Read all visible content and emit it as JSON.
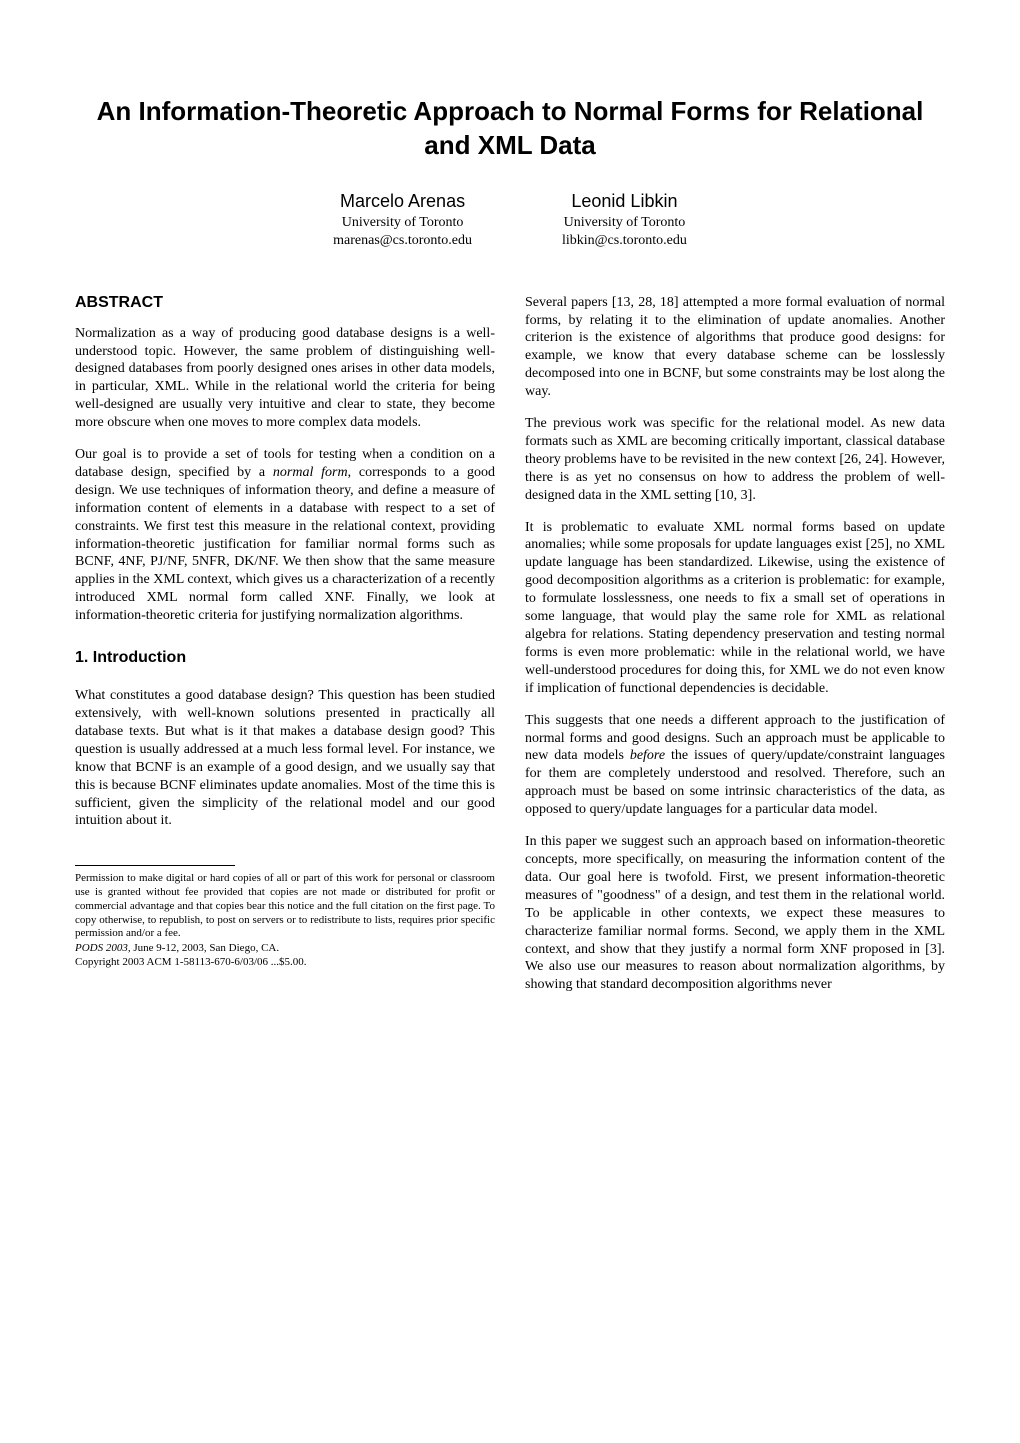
{
  "title": "An Information-Theoretic Approach to Normal Forms for Relational and XML Data",
  "authors": [
    {
      "name": "Marcelo Arenas",
      "affiliation": "University of Toronto",
      "email": "marenas@cs.toronto.edu"
    },
    {
      "name": "Leonid Libkin",
      "affiliation": "University of Toronto",
      "email": "libkin@cs.toronto.edu"
    }
  ],
  "sections": {
    "abstract_header": "ABSTRACT",
    "abstract_p1": "Normalization as a way of producing good database designs is a well-understood topic. However, the same problem of distinguishing well-designed databases from poorly designed ones arises in other data models, in particular, XML. While in the relational world the criteria for being well-designed are usually very intuitive and clear to state, they become more obscure when one moves to more complex data models.",
    "abstract_p2_part1": "Our goal is to provide a set of tools for testing when a condition on a database design, specified by a ",
    "abstract_p2_italic": "normal form",
    "abstract_p2_part2": ", corresponds to a good design. We use techniques of information theory, and define a measure of information content of elements in a database with respect to a set of constraints. We first test this measure in the relational context, providing information-theoretic justification for familiar normal forms such as BCNF, 4NF, PJ/NF, 5NFR, DK/NF. We then show that the same measure applies in the XML context, which gives us a characterization of a recently introduced XML normal form called XNF. Finally, we look at information-theoretic criteria for justifying normalization algorithms.",
    "intro_header": "1.   Introduction",
    "intro_p1": "What constitutes a good database design? This question has been studied extensively, with well-known solutions presented in practically all database texts. But what is it that makes a database design good? This question is usually addressed at a much less formal level. For instance, we know that BCNF is an example of a good design, and we usually say that this is because BCNF eliminates update anomalies. Most of the time this is sufficient, given the simplicity of the relational model and our good intuition about it.",
    "right_p1": "Several papers [13, 28, 18] attempted a more formal evaluation of normal forms, by relating it to the elimination of update anomalies. Another criterion is the existence of algorithms that produce good designs: for example, we know that every database scheme can be losslessly decomposed into one in BCNF, but some constraints may be lost along the way.",
    "right_p2": "The previous work was specific for the relational model. As new data formats such as XML are becoming critically important, classical database theory problems have to be revisited in the new context [26, 24]. However, there is as yet no consensus on how to address the problem of well-designed data in the XML setting [10, 3].",
    "right_p3": "It is problematic to evaluate XML normal forms based on update anomalies; while some proposals for update languages exist [25], no XML update language has been standardized. Likewise, using the existence of good decomposition algorithms as a criterion is problematic: for example, to formulate losslessness, one needs to fix a small set of operations in some language, that would play the same role for XML as relational algebra for relations. Stating dependency preservation and testing normal forms is even more problematic: while in the relational world, we have well-understood procedures for doing this, for XML we do not even know if implication of functional dependencies is decidable.",
    "right_p4_part1": "This suggests that one needs a different approach to the justification of normal forms and good designs. Such an approach must be applicable to new data models ",
    "right_p4_italic": "before",
    "right_p4_part2": " the issues of query/update/constraint languages for them are completely understood and resolved. Therefore, such an approach must be based on some intrinsic characteristics of the data, as opposed to query/update languages for a particular data model.",
    "right_p5": "In this paper we suggest such an approach based on information-theoretic concepts, more specifically, on measuring the information content of the data. Our goal here is twofold. First, we present information-theoretic measures of \"goodness\" of a design, and test them in the relational world. To be applicable in other contexts, we expect these measures to characterize familiar normal forms. Second, we apply them in the XML context, and show that they justify a normal form XNF proposed in [3]. We also use our measures to reason about normalization algorithms, by showing that standard decomposition algorithms never"
  },
  "footnote": {
    "permission": "Permission to make digital or hard copies of all or part of this work for personal or classroom use is granted without fee provided that copies are not made or distributed for profit or commercial advantage and that copies bear this notice and the full citation on the first page. To copy otherwise, to republish, to post on servers or to redistribute to lists, requires prior specific permission and/or a fee.",
    "venue": "PODS 2003, ",
    "venue_rest": "June 9-12, 2003, San Diego, CA.",
    "copyright": "Copyright 2003 ACM 1-58113-670-6/03/06 ...$5.00."
  }
}
